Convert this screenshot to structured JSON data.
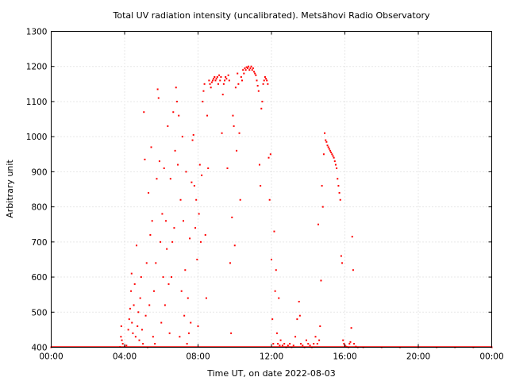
{
  "chart_data": {
    "type": "scatter",
    "title": "Total UV radiation intensity (uncalibrated). Metsähovi Radio Observatory",
    "xlabel": "Time UT, on date 2022-08-03",
    "ylabel": "Arbitrary unit",
    "xlim": [
      "00:00",
      "24:00"
    ],
    "ylim": [
      400,
      1300
    ],
    "x_tick_labels": [
      "00:00",
      "04:00",
      "08:00",
      "12:00",
      "16:00",
      "20:00",
      "00:00"
    ],
    "y_tick_labels": [
      "400",
      "500",
      "600",
      "700",
      "800",
      "900",
      "1000",
      "1100",
      "1200",
      "1300"
    ],
    "grid": true,
    "point_color": "#ff0000",
    "series": [
      {
        "x_units": "hours UT",
        "points": [
          [
            0.0,
            400
          ],
          [
            3.75,
            401
          ],
          [
            3.8,
            430
          ],
          [
            3.82,
            460
          ],
          [
            3.85,
            420
          ],
          [
            3.9,
            410
          ],
          [
            4.0,
            402
          ],
          [
            4.1,
            405
          ],
          [
            4.2,
            450
          ],
          [
            4.25,
            480
          ],
          [
            4.3,
            510
          ],
          [
            4.35,
            560
          ],
          [
            4.38,
            610
          ],
          [
            4.4,
            470
          ],
          [
            4.45,
            440
          ],
          [
            4.5,
            520
          ],
          [
            4.55,
            580
          ],
          [
            4.6,
            430
          ],
          [
            4.65,
            690
          ],
          [
            4.7,
            460
          ],
          [
            4.75,
            500
          ],
          [
            4.8,
            420
          ],
          [
            4.85,
            540
          ],
          [
            4.9,
            600
          ],
          [
            4.95,
            450
          ],
          [
            5.0,
            410
          ],
          [
            5.05,
            1070
          ],
          [
            5.1,
            935
          ],
          [
            5.15,
            490
          ],
          [
            5.2,
            640
          ],
          [
            5.25,
            400
          ],
          [
            5.3,
            840
          ],
          [
            5.35,
            520
          ],
          [
            5.4,
            720
          ],
          [
            5.45,
            970
          ],
          [
            5.5,
            760
          ],
          [
            5.55,
            430
          ],
          [
            5.6,
            560
          ],
          [
            5.65,
            410
          ],
          [
            5.7,
            640
          ],
          [
            5.75,
            880
          ],
          [
            5.8,
            1135
          ],
          [
            5.85,
            1110
          ],
          [
            5.9,
            930
          ],
          [
            5.95,
            700
          ],
          [
            6.0,
            470
          ],
          [
            6.05,
            780
          ],
          [
            6.1,
            600
          ],
          [
            6.15,
            910
          ],
          [
            6.2,
            520
          ],
          [
            6.25,
            760
          ],
          [
            6.3,
            680
          ],
          [
            6.35,
            1030
          ],
          [
            6.4,
            580
          ],
          [
            6.45,
            440
          ],
          [
            6.5,
            880
          ],
          [
            6.55,
            600
          ],
          [
            6.6,
            700
          ],
          [
            6.65,
            1070
          ],
          [
            6.7,
            740
          ],
          [
            6.75,
            960
          ],
          [
            6.8,
            1140
          ],
          [
            6.85,
            1100
          ],
          [
            6.9,
            920
          ],
          [
            6.95,
            1060
          ],
          [
            7.0,
            430
          ],
          [
            7.05,
            820
          ],
          [
            7.1,
            560
          ],
          [
            7.15,
            1000
          ],
          [
            7.2,
            760
          ],
          [
            7.25,
            490
          ],
          [
            7.3,
            620
          ],
          [
            7.35,
            900
          ],
          [
            7.4,
            410
          ],
          [
            7.45,
            540
          ],
          [
            7.5,
            440
          ],
          [
            7.55,
            710
          ],
          [
            7.6,
            470
          ],
          [
            7.65,
            870
          ],
          [
            7.7,
            990
          ],
          [
            7.75,
            1005
          ],
          [
            7.8,
            860
          ],
          [
            7.85,
            740
          ],
          [
            7.9,
            820
          ],
          [
            7.95,
            650
          ],
          [
            8.0,
            460
          ],
          [
            8.05,
            780
          ],
          [
            8.1,
            920
          ],
          [
            8.15,
            700
          ],
          [
            8.2,
            890
          ],
          [
            8.25,
            1100
          ],
          [
            8.3,
            1130
          ],
          [
            8.35,
            1150
          ],
          [
            8.4,
            720
          ],
          [
            8.45,
            540
          ],
          [
            8.5,
            1060
          ],
          [
            8.55,
            910
          ],
          [
            8.6,
            1160
          ],
          [
            8.65,
            1150
          ],
          [
            8.7,
            1140
          ],
          [
            8.75,
            1155
          ],
          [
            8.8,
            1160
          ],
          [
            8.85,
            1165
          ],
          [
            8.9,
            1170
          ],
          [
            8.95,
            1160
          ],
          [
            9.0,
            1165
          ],
          [
            9.05,
            1170
          ],
          [
            9.1,
            1150
          ],
          [
            9.15,
            1175
          ],
          [
            9.2,
            1160
          ],
          [
            9.25,
            1170
          ],
          [
            9.3,
            1010
          ],
          [
            9.35,
            1120
          ],
          [
            9.4,
            1150
          ],
          [
            9.45,
            1160
          ],
          [
            9.5,
            1170
          ],
          [
            9.55,
            1165
          ],
          [
            9.6,
            910
          ],
          [
            9.65,
            1175
          ],
          [
            9.7,
            1160
          ],
          [
            9.75,
            640
          ],
          [
            9.8,
            440
          ],
          [
            9.85,
            770
          ],
          [
            9.9,
            1060
          ],
          [
            9.95,
            1030
          ],
          [
            10.0,
            690
          ],
          [
            10.05,
            1140
          ],
          [
            10.1,
            960
          ],
          [
            10.15,
            1180
          ],
          [
            10.2,
            1150
          ],
          [
            10.25,
            1010
          ],
          [
            10.3,
            820
          ],
          [
            10.35,
            1170
          ],
          [
            10.4,
            1160
          ],
          [
            10.45,
            1190
          ],
          [
            10.5,
            1180
          ],
          [
            10.55,
            1195
          ],
          [
            10.6,
            1190
          ],
          [
            10.65,
            1198
          ],
          [
            10.7,
            1195
          ],
          [
            10.75,
            1200
          ],
          [
            10.8,
            1190
          ],
          [
            10.85,
            1195
          ],
          [
            10.9,
            1200
          ],
          [
            10.95,
            1190
          ],
          [
            11.0,
            1195
          ],
          [
            11.05,
            1185
          ],
          [
            11.1,
            1180
          ],
          [
            11.15,
            1175
          ],
          [
            11.2,
            1160
          ],
          [
            11.25,
            1145
          ],
          [
            11.3,
            1130
          ],
          [
            11.35,
            920
          ],
          [
            11.4,
            860
          ],
          [
            11.45,
            1080
          ],
          [
            11.5,
            1100
          ],
          [
            11.55,
            1150
          ],
          [
            11.6,
            1160
          ],
          [
            11.65,
            1170
          ],
          [
            11.7,
            1165
          ],
          [
            11.75,
            1160
          ],
          [
            11.8,
            1150
          ],
          [
            11.85,
            940
          ],
          [
            11.9,
            820
          ],
          [
            11.95,
            950
          ],
          [
            12.0,
            650
          ],
          [
            12.05,
            480
          ],
          [
            12.1,
            410
          ],
          [
            12.15,
            730
          ],
          [
            12.2,
            560
          ],
          [
            12.25,
            620
          ],
          [
            12.3,
            440
          ],
          [
            12.35,
            410
          ],
          [
            12.4,
            540
          ],
          [
            12.45,
            405
          ],
          [
            12.5,
            420
          ],
          [
            12.6,
            405
          ],
          [
            12.7,
            410
          ],
          [
            12.8,
            400
          ],
          [
            12.9,
            405
          ],
          [
            13.0,
            410
          ],
          [
            13.1,
            400
          ],
          [
            13.2,
            405
          ],
          [
            13.3,
            430
          ],
          [
            13.4,
            480
          ],
          [
            13.5,
            530
          ],
          [
            13.55,
            490
          ],
          [
            13.6,
            410
          ],
          [
            13.7,
            405
          ],
          [
            13.8,
            400
          ],
          [
            13.9,
            420
          ],
          [
            14.0,
            410
          ],
          [
            14.1,
            405
          ],
          [
            14.2,
            400
          ],
          [
            14.3,
            410
          ],
          [
            14.4,
            430
          ],
          [
            14.5,
            410
          ],
          [
            14.55,
            750
          ],
          [
            14.6,
            420
          ],
          [
            14.65,
            460
          ],
          [
            14.7,
            590
          ],
          [
            14.75,
            860
          ],
          [
            14.8,
            800
          ],
          [
            14.85,
            950
          ],
          [
            14.9,
            1010
          ],
          [
            14.95,
            990
          ],
          [
            15.0,
            985
          ],
          [
            15.05,
            975
          ],
          [
            15.1,
            970
          ],
          [
            15.15,
            965
          ],
          [
            15.2,
            960
          ],
          [
            15.25,
            955
          ],
          [
            15.3,
            950
          ],
          [
            15.35,
            945
          ],
          [
            15.4,
            940
          ],
          [
            15.45,
            930
          ],
          [
            15.5,
            920
          ],
          [
            15.55,
            910
          ],
          [
            15.6,
            880
          ],
          [
            15.65,
            860
          ],
          [
            15.7,
            840
          ],
          [
            15.75,
            820
          ],
          [
            15.8,
            660
          ],
          [
            15.85,
            640
          ],
          [
            15.9,
            420
          ],
          [
            15.95,
            410
          ],
          [
            16.0,
            405
          ],
          [
            16.05,
            402
          ],
          [
            16.1,
            401
          ],
          [
            16.2,
            400
          ],
          [
            16.25,
            410
          ],
          [
            16.3,
            415
          ],
          [
            16.35,
            455
          ],
          [
            16.4,
            715
          ],
          [
            16.45,
            620
          ],
          [
            16.5,
            410
          ],
          [
            16.6,
            402
          ],
          [
            16.7,
            400
          ],
          [
            17.0,
            400
          ],
          [
            18.0,
            400
          ],
          [
            19.0,
            400
          ],
          [
            20.0,
            400
          ],
          [
            21.0,
            400
          ],
          [
            22.0,
            400
          ],
          [
            23.0,
            400
          ],
          [
            24.0,
            400
          ]
        ]
      }
    ]
  }
}
